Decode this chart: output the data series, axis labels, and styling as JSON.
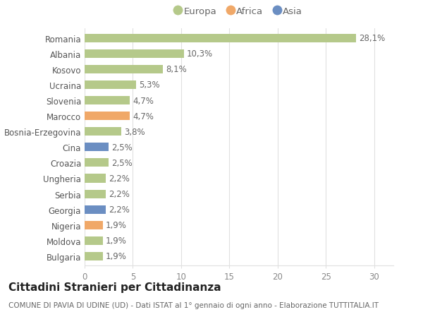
{
  "countries": [
    "Romania",
    "Albania",
    "Kosovo",
    "Ucraina",
    "Slovenia",
    "Marocco",
    "Bosnia-Erzegovina",
    "Cina",
    "Croazia",
    "Ungheria",
    "Serbia",
    "Georgia",
    "Nigeria",
    "Moldova",
    "Bulgaria"
  ],
  "values": [
    28.1,
    10.3,
    8.1,
    5.3,
    4.7,
    4.7,
    3.8,
    2.5,
    2.5,
    2.2,
    2.2,
    2.2,
    1.9,
    1.9,
    1.9
  ],
  "labels": [
    "28,1%",
    "10,3%",
    "8,1%",
    "5,3%",
    "4,7%",
    "4,7%",
    "3,8%",
    "2,5%",
    "2,5%",
    "2,2%",
    "2,2%",
    "2,2%",
    "1,9%",
    "1,9%",
    "1,9%"
  ],
  "continents": [
    "Europa",
    "Europa",
    "Europa",
    "Europa",
    "Europa",
    "Africa",
    "Europa",
    "Asia",
    "Europa",
    "Europa",
    "Europa",
    "Asia",
    "Africa",
    "Europa",
    "Europa"
  ],
  "colors": {
    "Europa": "#b5c98a",
    "Africa": "#f0a868",
    "Asia": "#6b8ec2"
  },
  "xlim": [
    0,
    32
  ],
  "xticks": [
    0,
    5,
    10,
    15,
    20,
    25,
    30
  ],
  "title": "Cittadini Stranieri per Cittadinanza",
  "subtitle": "COMUNE DI PAVIA DI UDINE (UD) - Dati ISTAT al 1° gennaio di ogni anno - Elaborazione TUTTITALIA.IT",
  "bg_color": "#ffffff",
  "grid_color": "#e0e0e0",
  "bar_height": 0.55,
  "label_fontsize": 8.5,
  "tick_fontsize": 8.5,
  "title_fontsize": 11,
  "subtitle_fontsize": 7.5
}
